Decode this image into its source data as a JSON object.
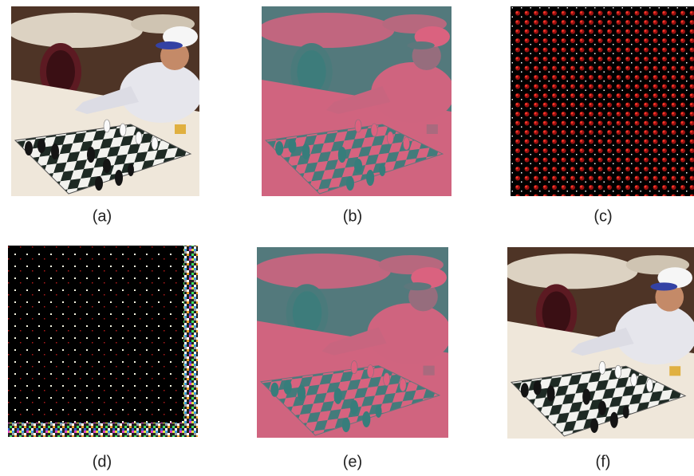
{
  "figure": {
    "panels": [
      {
        "caption": "(a)"
      },
      {
        "caption": "(b)"
      },
      {
        "caption": "(c)"
      },
      {
        "caption": "(d)"
      },
      {
        "caption": "(e)"
      },
      {
        "caption": "(f)"
      }
    ]
  }
}
